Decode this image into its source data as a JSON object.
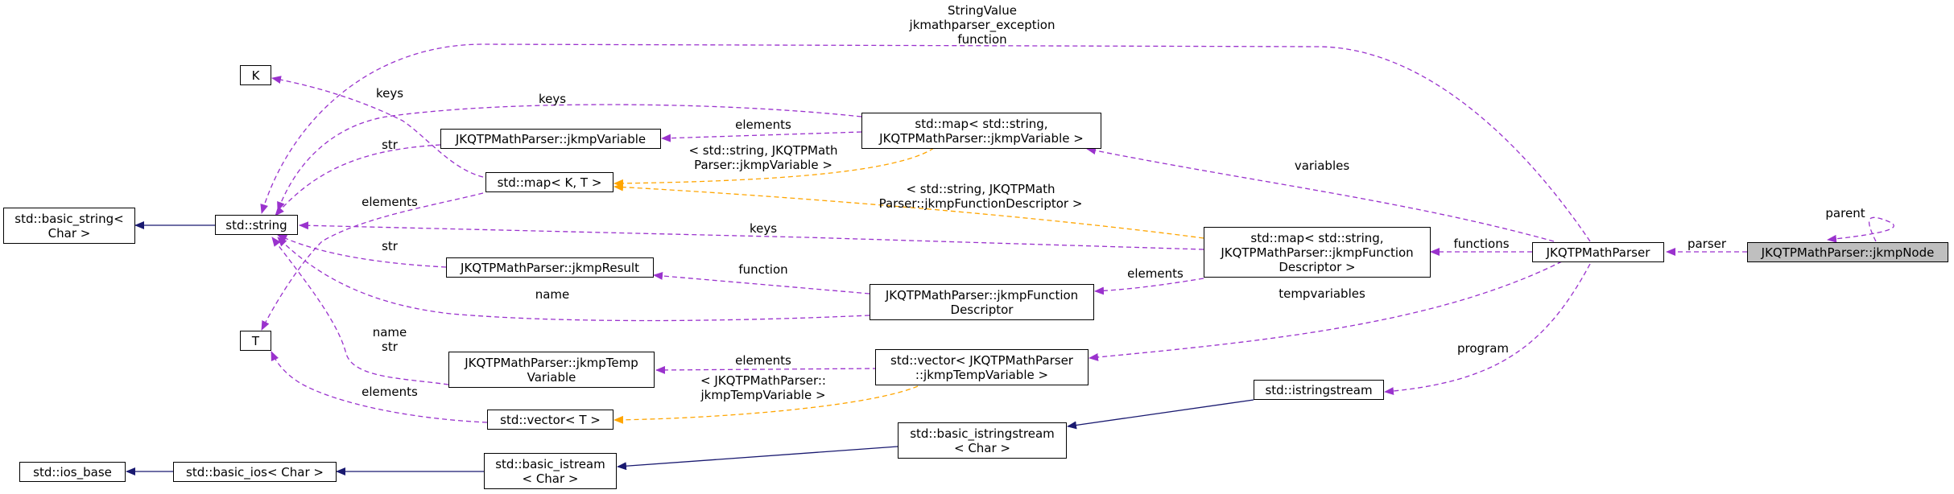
{
  "colors": {
    "inheritance": "#191970",
    "usage": "#9a32cd",
    "template": "#ffa500",
    "highlight": "#bfbfbf"
  },
  "nodes": {
    "jkmpNode": "JKQTPMathParser::jkmpNode",
    "parser": "JKQTPMathParser",
    "mapFunc": [
      "std::map< std::string,",
      "JKQTPMathParser::jkmpFunction",
      "Descriptor >"
    ],
    "mapVar": [
      "std::map< std::string,",
      "JKQTPMathParser::jkmpVariable >"
    ],
    "stringClass": "std::string",
    "basicString": [
      "std::basic_string<",
      "Char >"
    ],
    "K": "K",
    "T": "T",
    "jkmpVariable": "JKQTPMathParser::jkmpVariable",
    "mapKT": "std::map< K, T >",
    "jkmpResult": "JKQTPMathParser::jkmpResult",
    "jkmpFunctionDescriptor": [
      "JKQTPMathParser::jkmpFunction",
      "Descriptor"
    ],
    "jkmpTempVariable": [
      "JKQTPMathParser::jkmpTemp",
      "Variable"
    ],
    "vectorTemp": [
      "std::vector< JKQTPMathParser",
      "::jkmpTempVariable >"
    ],
    "vectorT": "std::vector< T >",
    "istringstream": "std::istringstream",
    "basicIstringstream": [
      "std::basic_istringstream",
      "< Char >"
    ],
    "basicIstream": [
      "std::basic_istream",
      "< Char >"
    ],
    "basicIos": "std::basic_ios< Char >",
    "iosBase": "std::ios_base"
  },
  "edges": {
    "parent": "parent",
    "parser": "parser",
    "functions": "functions",
    "variables": "variables",
    "tempvariables": "tempvariables",
    "program": "program",
    "stringTop": [
      "StringValue",
      "jkmathparser_exception",
      "function"
    ],
    "keysVar": "keys",
    "elementsVar": "elements",
    "keysMapKT": "keys",
    "strVar": "str",
    "elementsMapKT": "elements",
    "mapVarTemplate": [
      "< std::string, JKQTPMath",
      "Parser::jkmpVariable >"
    ],
    "mapFuncTemplate": [
      "< std::string, JKQTPMath",
      "Parser::jkmpFunctionDescriptor >"
    ],
    "keysFunc": "keys",
    "strResult": "str",
    "function": "function",
    "elementsFunc": "elements",
    "name": "name",
    "nameStr": [
      "name",
      "str"
    ],
    "elementsTemp": "elements",
    "vectorTemplate": [
      "< JKQTPMathParser::",
      "jkmpTempVariable >"
    ],
    "elementsVectorT": "elements"
  }
}
